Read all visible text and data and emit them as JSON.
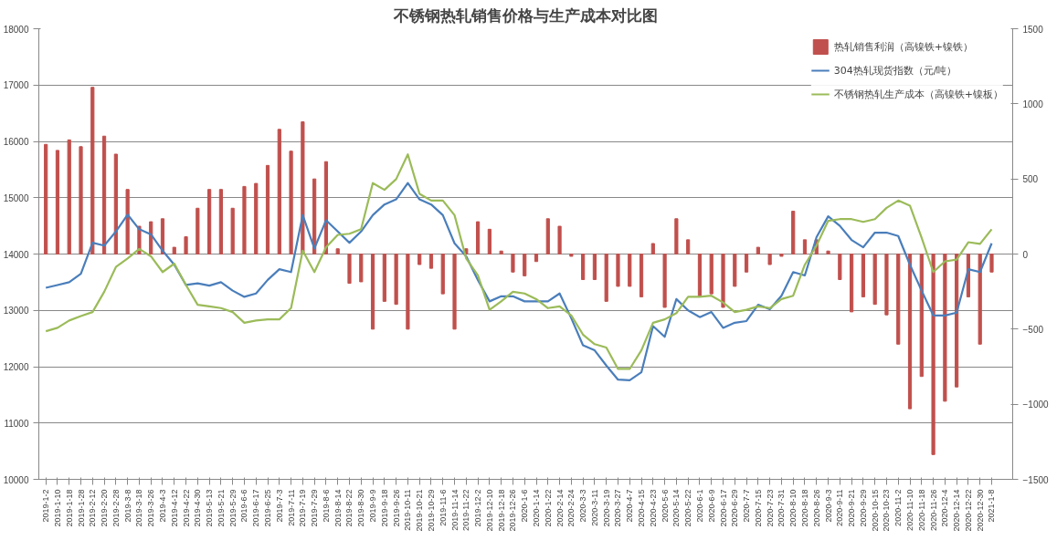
{
  "chart_data": {
    "type": "bar",
    "title": "不锈钢热轧销售价格与生产成本对比图",
    "categories": [
      "2019-1-2",
      "2019-1-10",
      "2019-1-18",
      "2019-1-28",
      "2019-2-12",
      "2019-2-20",
      "2019-2-28",
      "2019-3-8",
      "2019-3-18",
      "2019-3-26",
      "2019-4-3",
      "2019-4-12",
      "2019-4-22",
      "2019-4-30",
      "2019-5-13",
      "2019-5-21",
      "2019-5-29",
      "2019-6-6",
      "2019-6-17",
      "2019-6-25",
      "2019-7-3",
      "2019-7-11",
      "2019-7-19",
      "2019-7-29",
      "2019-8-6",
      "2019-8-14",
      "2019-8-22",
      "2019-8-30",
      "2019-9-9",
      "2019-9-18",
      "2019-9-26",
      "2019-10-11",
      "2019-10-21",
      "2019-10-29",
      "2019-11-6",
      "2019-11-14",
      "2019-11-22",
      "2019-12-2",
      "2019-12-10",
      "2019-12-18",
      "2019-12-26",
      "2020-1-6",
      "2020-1-14",
      "2020-1-22",
      "2020-2-14",
      "2020-2-24",
      "2020-3-3",
      "2020-3-11",
      "2020-3-19",
      "2020-3-27",
      "2020-4-7",
      "2020-4-15",
      "2020-4-23",
      "2020-5-6",
      "2020-5-14",
      "2020-5-22",
      "2020-6-1",
      "2020-6-9",
      "2020-6-17",
      "2020-6-29",
      "2020-7-7",
      "2020-7-15",
      "2020-7-23",
      "2020-7-31",
      "2020-8-10",
      "2020-8-18",
      "2020-8-26",
      "2020-9-3",
      "2020-9-11",
      "2020-9-21",
      "2020-9-29",
      "2020-10-15",
      "2020-10-23",
      "2020-11-2",
      "2020-11-10",
      "2020-11-18",
      "2020-11-26",
      "2020-12-4",
      "2020-12-14",
      "2020-12-22",
      "2020-12-30",
      "2021-1-8"
    ],
    "series": [
      {
        "name": "热轧销售利润（高镍铁+镍铁）",
        "axis": "y2",
        "color": "#c0504d",
        "values": [
          730,
          690,
          760,
          715,
          1110,
          785,
          665,
          430,
          185,
          215,
          235,
          45,
          115,
          305,
          430,
          430,
          305,
          450,
          470,
          590,
          830,
          685,
          880,
          500,
          615,
          35,
          -195,
          -185,
          -500,
          -315,
          -335,
          -500,
          -70,
          -95,
          -265,
          -500,
          35,
          215,
          165,
          20,
          -120,
          -145,
          -50,
          235,
          185,
          -15,
          -170,
          -170,
          -315,
          -215,
          -215,
          -285,
          70,
          -355,
          235,
          95,
          -285,
          -265,
          -355,
          -215,
          -120,
          45,
          -70,
          -15,
          285,
          95,
          95,
          20,
          -170,
          -385,
          -285,
          -335,
          -405,
          -600,
          -1030,
          -815,
          -1335,
          -980,
          -885,
          -285,
          -600,
          -120
        ]
      },
      {
        "name": "304热轧现货指数（元/吨）",
        "type": "line",
        "color": "#4a7ebb",
        "values": [
          13400,
          13450,
          13500,
          13650,
          14200,
          14150,
          14400,
          14700,
          14440,
          14350,
          14060,
          13810,
          13450,
          13480,
          13440,
          13500,
          13350,
          13240,
          13300,
          13540,
          13730,
          13680,
          14690,
          14100,
          14600,
          14400,
          14200,
          14400,
          14690,
          14880,
          14970,
          15260,
          14970,
          14880,
          14690,
          14190,
          13960,
          13540,
          13160,
          13250,
          13250,
          13160,
          13160,
          13160,
          13300,
          12860,
          12380,
          12290,
          12020,
          11770,
          11760,
          11900,
          12720,
          12530,
          13200,
          13000,
          12880,
          12970,
          12690,
          12780,
          12810,
          13100,
          13020,
          13260,
          13680,
          13620,
          14300,
          14670,
          14500,
          14250,
          14120,
          14380,
          14380,
          14320,
          13810,
          13350,
          12910,
          12910,
          12960,
          13730,
          13680,
          14190
        ]
      },
      {
        "name": "不锈钢热轧生产成本（高镍铁+镍板）",
        "type": "line",
        "color": "#9bbb59",
        "values": [
          12630,
          12690,
          12820,
          12900,
          12970,
          13330,
          13770,
          13920,
          14090,
          13960,
          13680,
          13830,
          13450,
          13100,
          13070,
          13040,
          12970,
          12780,
          12820,
          12840,
          12840,
          13040,
          14060,
          13680,
          14120,
          14340,
          14360,
          14440,
          15260,
          15140,
          15330,
          15770,
          15070,
          14950,
          14950,
          14690,
          13920,
          13620,
          13010,
          13160,
          13330,
          13300,
          13200,
          13040,
          13070,
          12910,
          12570,
          12400,
          12340,
          11960,
          11960,
          12290,
          12780,
          12840,
          12950,
          13240,
          13240,
          13260,
          13140,
          12970,
          13010,
          13070,
          13040,
          13200,
          13260,
          13810,
          14150,
          14590,
          14620,
          14620,
          14570,
          14620,
          14820,
          14950,
          14860,
          14290,
          13680,
          13870,
          13900,
          14210,
          14180,
          14440
        ]
      }
    ],
    "ylim": [
      10000,
      18000
    ],
    "yticks": [
      10000,
      11000,
      12000,
      13000,
      14000,
      15000,
      16000,
      17000,
      18000
    ],
    "y2lim": [
      -1500,
      1500
    ],
    "y2ticks": [
      -1500,
      -1000,
      -500,
      0,
      500,
      1000,
      1500
    ],
    "grid": "y",
    "legend": "top right"
  }
}
